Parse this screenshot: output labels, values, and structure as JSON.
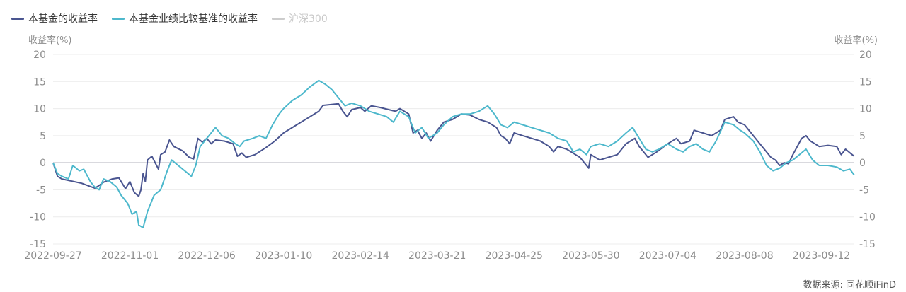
{
  "legend": [
    {
      "label": "本基金的收益率",
      "color": "#4a5590",
      "active": true
    },
    {
      "label": "本基金业绩比较基准的收益率",
      "color": "#4db8cc",
      "active": true
    },
    {
      "label": "沪深300",
      "color": "#cccccc",
      "active": false
    }
  ],
  "axis": {
    "left_title": "收益率(%)",
    "right_title": "收益率(%)"
  },
  "source": "数据来源: 同花顺iFinD",
  "chart_data": {
    "type": "line",
    "ylim": [
      -15,
      20
    ],
    "yticks": [
      20,
      15,
      10,
      5,
      0,
      -5,
      -10,
      -15
    ],
    "x_tick_labels": [
      "2022-09-27",
      "2022-11-01",
      "2022-12-06",
      "2023-01-10",
      "2023-02-14",
      "2023-03-21",
      "2023-04-25",
      "2023-05-30",
      "2023-07-04",
      "2023-08-08",
      "2023-09-12"
    ],
    "x_range": [
      "2022-09-27",
      "2023-09-27"
    ],
    "grid": true,
    "legend_position": "top-left",
    "series": [
      {
        "name": "本基金的收益率",
        "color": "#4a5590",
        "points": [
          [
            "2022-09-27",
            0
          ],
          [
            "2022-09-29",
            -2.5
          ],
          [
            "2022-10-01",
            -3.0
          ],
          [
            "2022-10-10",
            -3.8
          ],
          [
            "2022-10-16",
            -4.7
          ],
          [
            "2022-10-18",
            -4.2
          ],
          [
            "2022-10-20",
            -3.6
          ],
          [
            "2022-10-24",
            -3.0
          ],
          [
            "2022-10-27",
            -2.8
          ],
          [
            "2022-10-30",
            -4.8
          ],
          [
            "2022-11-01",
            -3.5
          ],
          [
            "2022-11-03",
            -5.5
          ],
          [
            "2022-11-05",
            -6.2
          ],
          [
            "2022-11-06",
            -5.0
          ],
          [
            "2022-11-07",
            -2.0
          ],
          [
            "2022-11-08",
            -3.5
          ],
          [
            "2022-11-09",
            0.5
          ],
          [
            "2022-11-11",
            1.2
          ],
          [
            "2022-11-14",
            -1.2
          ],
          [
            "2022-11-15",
            1.5
          ],
          [
            "2022-11-17",
            2.0
          ],
          [
            "2022-11-19",
            4.2
          ],
          [
            "2022-11-21",
            3.0
          ],
          [
            "2022-11-25",
            2.2
          ],
          [
            "2022-11-28",
            1.0
          ],
          [
            "2022-11-30",
            0.7
          ],
          [
            "2022-12-02",
            4.5
          ],
          [
            "2022-12-04",
            3.8
          ],
          [
            "2022-12-06",
            4.5
          ],
          [
            "2022-12-08",
            3.5
          ],
          [
            "2022-12-10",
            4.2
          ],
          [
            "2022-12-14",
            4.0
          ],
          [
            "2022-12-18",
            3.5
          ],
          [
            "2022-12-20",
            1.2
          ],
          [
            "2022-12-22",
            1.8
          ],
          [
            "2022-12-24",
            1.0
          ],
          [
            "2022-12-28",
            1.5
          ],
          [
            "2023-01-02",
            2.8
          ],
          [
            "2023-01-06",
            4.0
          ],
          [
            "2023-01-10",
            5.5
          ],
          [
            "2023-01-14",
            6.5
          ],
          [
            "2023-01-18",
            7.5
          ],
          [
            "2023-01-22",
            8.5
          ],
          [
            "2023-01-26",
            9.5
          ],
          [
            "2023-01-28",
            10.6
          ],
          [
            "2023-02-04",
            10.9
          ],
          [
            "2023-02-06",
            9.5
          ],
          [
            "2023-02-08",
            8.5
          ],
          [
            "2023-02-10",
            9.8
          ],
          [
            "2023-02-14",
            10.2
          ],
          [
            "2023-02-16",
            9.5
          ],
          [
            "2023-02-19",
            10.5
          ],
          [
            "2023-02-23",
            10.2
          ],
          [
            "2023-02-27",
            9.8
          ],
          [
            "2023-03-02",
            9.5
          ],
          [
            "2023-03-04",
            10.0
          ],
          [
            "2023-03-08",
            9.0
          ],
          [
            "2023-03-10",
            5.5
          ],
          [
            "2023-03-12",
            6.0
          ],
          [
            "2023-03-14",
            4.5
          ],
          [
            "2023-03-16",
            5.5
          ],
          [
            "2023-03-18",
            4.0
          ],
          [
            "2023-03-21",
            6.0
          ],
          [
            "2023-03-24",
            7.5
          ],
          [
            "2023-03-28",
            8.0
          ],
          [
            "2023-04-01",
            9.0
          ],
          [
            "2023-04-05",
            8.8
          ],
          [
            "2023-04-09",
            8.0
          ],
          [
            "2023-04-13",
            7.5
          ],
          [
            "2023-04-17",
            6.5
          ],
          [
            "2023-04-19",
            5.0
          ],
          [
            "2023-04-21",
            4.5
          ],
          [
            "2023-04-23",
            3.5
          ],
          [
            "2023-04-25",
            5.5
          ],
          [
            "2023-04-29",
            5.0
          ],
          [
            "2023-05-03",
            4.5
          ],
          [
            "2023-05-07",
            4.0
          ],
          [
            "2023-05-11",
            3.0
          ],
          [
            "2023-05-13",
            2.0
          ],
          [
            "2023-05-15",
            3.0
          ],
          [
            "2023-05-19",
            2.5
          ],
          [
            "2023-05-23",
            1.5
          ],
          [
            "2023-05-25",
            1.0
          ],
          [
            "2023-05-29",
            -1.0
          ],
          [
            "2023-05-30",
            1.5
          ],
          [
            "2023-06-03",
            0.5
          ],
          [
            "2023-06-07",
            1.0
          ],
          [
            "2023-06-11",
            1.5
          ],
          [
            "2023-06-15",
            3.5
          ],
          [
            "2023-06-19",
            4.5
          ],
          [
            "2023-06-21",
            3.0
          ],
          [
            "2023-06-23",
            2.0
          ],
          [
            "2023-06-25",
            1.0
          ],
          [
            "2023-06-29",
            2.0
          ],
          [
            "2023-07-04",
            3.5
          ],
          [
            "2023-07-08",
            4.5
          ],
          [
            "2023-07-10",
            3.5
          ],
          [
            "2023-07-14",
            4.0
          ],
          [
            "2023-07-16",
            6.0
          ],
          [
            "2023-07-20",
            5.5
          ],
          [
            "2023-07-24",
            5.0
          ],
          [
            "2023-07-28",
            6.0
          ],
          [
            "2023-07-30",
            8.0
          ],
          [
            "2023-08-03",
            8.5
          ],
          [
            "2023-08-05",
            7.5
          ],
          [
            "2023-08-08",
            7.0
          ],
          [
            "2023-08-12",
            5.0
          ],
          [
            "2023-08-16",
            3.0
          ],
          [
            "2023-08-18",
            2.0
          ],
          [
            "2023-08-20",
            1.0
          ],
          [
            "2023-08-22",
            0.5
          ],
          [
            "2023-08-24",
            -0.5
          ],
          [
            "2023-08-26",
            0.0
          ],
          [
            "2023-08-28",
            -0.2
          ],
          [
            "2023-08-30",
            1.5
          ],
          [
            "2023-09-01",
            3.0
          ],
          [
            "2023-09-03",
            4.5
          ],
          [
            "2023-09-05",
            5.0
          ],
          [
            "2023-09-07",
            4.0
          ],
          [
            "2023-09-09",
            3.5
          ],
          [
            "2023-09-11",
            3.0
          ],
          [
            "2023-09-15",
            3.2
          ],
          [
            "2023-09-19",
            3.0
          ],
          [
            "2023-09-21",
            1.5
          ],
          [
            "2023-09-23",
            2.5
          ],
          [
            "2023-09-26",
            1.5
          ],
          [
            "2023-09-27",
            1.2
          ]
        ]
      },
      {
        "name": "本基金业绩比较基准的收益率",
        "color": "#4db8cc",
        "points": [
          [
            "2022-09-27",
            0
          ],
          [
            "2022-09-29",
            -2.0
          ],
          [
            "2022-10-01",
            -2.5
          ],
          [
            "2022-10-04",
            -3.0
          ],
          [
            "2022-10-06",
            -0.5
          ],
          [
            "2022-10-09",
            -1.5
          ],
          [
            "2022-10-11",
            -1.2
          ],
          [
            "2022-10-14",
            -3.5
          ],
          [
            "2022-10-16",
            -4.5
          ],
          [
            "2022-10-18",
            -5.0
          ],
          [
            "2022-10-20",
            -3.0
          ],
          [
            "2022-10-23",
            -3.5
          ],
          [
            "2022-10-26",
            -4.5
          ],
          [
            "2022-10-28",
            -6.0
          ],
          [
            "2022-10-31",
            -7.5
          ],
          [
            "2022-11-02",
            -9.5
          ],
          [
            "2022-11-04",
            -9.0
          ],
          [
            "2022-11-05",
            -11.5
          ],
          [
            "2022-11-07",
            -12.0
          ],
          [
            "2022-11-09",
            -9.0
          ],
          [
            "2022-11-12",
            -6.0
          ],
          [
            "2022-11-15",
            -5.0
          ],
          [
            "2022-11-18",
            -1.5
          ],
          [
            "2022-11-20",
            0.5
          ],
          [
            "2022-11-23",
            -0.5
          ],
          [
            "2022-11-26",
            -1.5
          ],
          [
            "2022-11-29",
            -2.5
          ],
          [
            "2022-12-01",
            -0.5
          ],
          [
            "2022-12-03",
            3.0
          ],
          [
            "2022-12-06",
            4.5
          ],
          [
            "2022-12-08",
            5.5
          ],
          [
            "2022-12-10",
            6.5
          ],
          [
            "2022-12-13",
            5.0
          ],
          [
            "2022-12-16",
            4.5
          ],
          [
            "2022-12-19",
            3.5
          ],
          [
            "2022-12-21",
            3.0
          ],
          [
            "2022-12-23",
            4.0
          ],
          [
            "2022-12-27",
            4.5
          ],
          [
            "2022-12-30",
            5.0
          ],
          [
            "2023-01-02",
            4.5
          ],
          [
            "2023-01-05",
            7.0
          ],
          [
            "2023-01-08",
            9.0
          ],
          [
            "2023-01-10",
            10.0
          ],
          [
            "2023-01-14",
            11.5
          ],
          [
            "2023-01-18",
            12.5
          ],
          [
            "2023-01-22",
            14.0
          ],
          [
            "2023-01-26",
            15.2
          ],
          [
            "2023-01-29",
            14.5
          ],
          [
            "2023-02-01",
            13.5
          ],
          [
            "2023-02-04",
            12.0
          ],
          [
            "2023-02-07",
            10.5
          ],
          [
            "2023-02-10",
            11.0
          ],
          [
            "2023-02-14",
            10.5
          ],
          [
            "2023-02-18",
            9.5
          ],
          [
            "2023-02-22",
            9.0
          ],
          [
            "2023-02-26",
            8.5
          ],
          [
            "2023-03-01",
            7.5
          ],
          [
            "2023-03-04",
            9.5
          ],
          [
            "2023-03-08",
            8.5
          ],
          [
            "2023-03-11",
            5.5
          ],
          [
            "2023-03-14",
            6.5
          ],
          [
            "2023-03-17",
            4.5
          ],
          [
            "2023-03-21",
            5.5
          ],
          [
            "2023-03-24",
            7.0
          ],
          [
            "2023-03-28",
            8.5
          ],
          [
            "2023-04-01",
            9.0
          ],
          [
            "2023-04-05",
            9.0
          ],
          [
            "2023-04-09",
            9.5
          ],
          [
            "2023-04-13",
            10.5
          ],
          [
            "2023-04-16",
            9.0
          ],
          [
            "2023-04-19",
            7.0
          ],
          [
            "2023-04-22",
            6.5
          ],
          [
            "2023-04-25",
            7.5
          ],
          [
            "2023-04-29",
            7.0
          ],
          [
            "2023-05-03",
            6.5
          ],
          [
            "2023-05-07",
            6.0
          ],
          [
            "2023-05-11",
            5.5
          ],
          [
            "2023-05-15",
            4.5
          ],
          [
            "2023-05-19",
            4.0
          ],
          [
            "2023-05-22",
            2.0
          ],
          [
            "2023-05-25",
            2.5
          ],
          [
            "2023-05-28",
            1.5
          ],
          [
            "2023-05-30",
            3.0
          ],
          [
            "2023-06-03",
            3.5
          ],
          [
            "2023-06-07",
            3.0
          ],
          [
            "2023-06-11",
            4.0
          ],
          [
            "2023-06-15",
            5.5
          ],
          [
            "2023-06-18",
            6.5
          ],
          [
            "2023-06-21",
            4.5
          ],
          [
            "2023-06-24",
            2.5
          ],
          [
            "2023-06-27",
            2.0
          ],
          [
            "2023-06-30",
            2.5
          ],
          [
            "2023-07-04",
            3.5
          ],
          [
            "2023-07-08",
            2.5
          ],
          [
            "2023-07-11",
            2.0
          ],
          [
            "2023-07-14",
            3.0
          ],
          [
            "2023-07-17",
            3.5
          ],
          [
            "2023-07-20",
            2.5
          ],
          [
            "2023-07-23",
            2.0
          ],
          [
            "2023-07-26",
            4.0
          ],
          [
            "2023-07-30",
            7.5
          ],
          [
            "2023-08-03",
            7.0
          ],
          [
            "2023-08-06",
            6.0
          ],
          [
            "2023-08-08",
            5.5
          ],
          [
            "2023-08-12",
            4.0
          ],
          [
            "2023-08-15",
            2.0
          ],
          [
            "2023-08-18",
            -0.5
          ],
          [
            "2023-08-21",
            -1.5
          ],
          [
            "2023-08-24",
            -1.0
          ],
          [
            "2023-08-27",
            0.0
          ],
          [
            "2023-08-30",
            0.5
          ],
          [
            "2023-09-02",
            1.5
          ],
          [
            "2023-09-05",
            2.5
          ],
          [
            "2023-09-08",
            0.5
          ],
          [
            "2023-09-11",
            -0.5
          ],
          [
            "2023-09-15",
            -0.5
          ],
          [
            "2023-09-19",
            -0.8
          ],
          [
            "2023-09-22",
            -1.5
          ],
          [
            "2023-09-25",
            -1.2
          ],
          [
            "2023-09-27",
            -2.3
          ]
        ]
      }
    ]
  }
}
